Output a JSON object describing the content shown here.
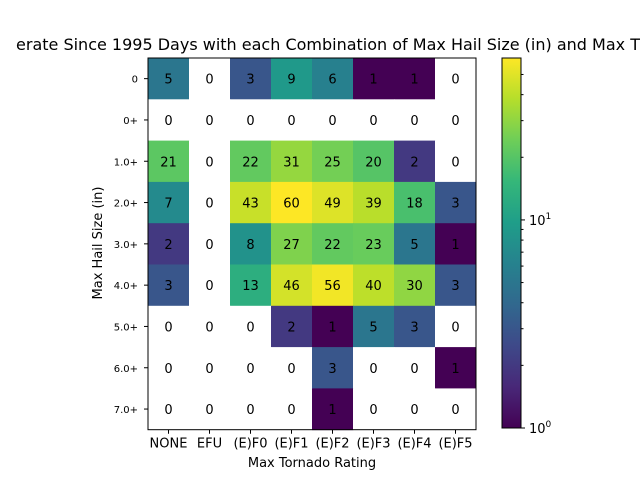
{
  "chart_data": {
    "type": "heatmap",
    "title": "erate Since 1995 Days with each Combination of Max Hail Size (in) and Max T",
    "xlabel": "Max Tornado Rating",
    "ylabel": "Max Hail Size (in)",
    "x_categories": [
      "NONE",
      "EFU",
      "(E)F0",
      "(E)F1",
      "(E)F2",
      "(E)F3",
      "(E)F4",
      "(E)F5"
    ],
    "y_categories": [
      "0",
      "0+",
      "1.0+",
      "2.0+",
      "3.0+",
      "4.0+",
      "5.0+",
      "6.0+",
      "7.0+"
    ],
    "values": [
      [
        5,
        0,
        3,
        9,
        6,
        1,
        1,
        0
      ],
      [
        0,
        0,
        0,
        0,
        0,
        0,
        0,
        0
      ],
      [
        21,
        0,
        22,
        31,
        25,
        20,
        2,
        0
      ],
      [
        7,
        0,
        43,
        60,
        49,
        39,
        18,
        3
      ],
      [
        2,
        0,
        8,
        27,
        22,
        23,
        5,
        1
      ],
      [
        3,
        0,
        13,
        46,
        56,
        40,
        30,
        3
      ],
      [
        0,
        0,
        0,
        2,
        1,
        5,
        3,
        0
      ],
      [
        0,
        0,
        0,
        0,
        3,
        0,
        0,
        1
      ],
      [
        0,
        0,
        0,
        0,
        1,
        0,
        0,
        0
      ]
    ],
    "colormap": "viridis",
    "color_scale": "log",
    "zero_color": "#ffffff",
    "colorbar": {
      "range": [
        1,
        60
      ],
      "tick_labels": [
        "10^0",
        "10^1"
      ],
      "tick_values": [
        1,
        10
      ]
    }
  }
}
